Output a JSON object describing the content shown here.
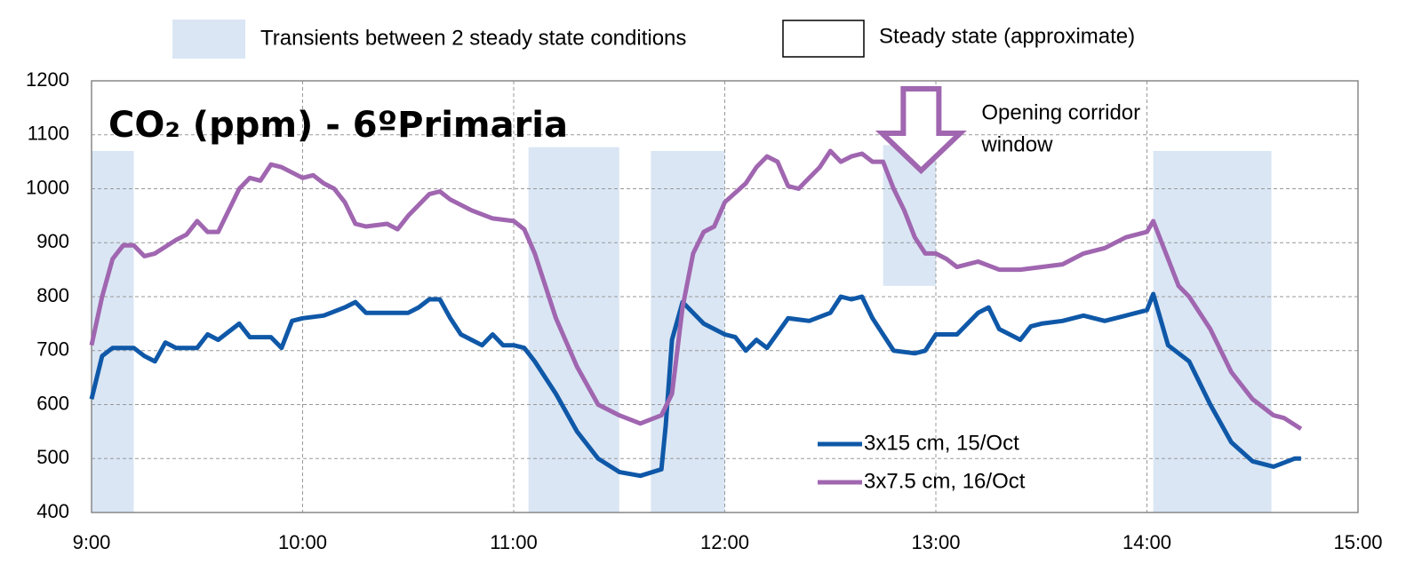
{
  "chart_data": {
    "type": "line",
    "title": "CO₂ (ppm) - 6ºPrimaria",
    "xlim": [
      9,
      15
    ],
    "xticks": [
      {
        "value": 9,
        "label": "9:00"
      },
      {
        "value": 10,
        "label": "10:00"
      },
      {
        "value": 11,
        "label": "11:00"
      },
      {
        "value": 12,
        "label": "12:00"
      },
      {
        "value": 13,
        "label": "13:00"
      },
      {
        "value": 14,
        "label": "14:00"
      },
      {
        "value": 15,
        "label": "15:00"
      }
    ],
    "ylim": [
      400,
      1200
    ],
    "yticks": [
      400,
      500,
      600,
      700,
      800,
      900,
      1000,
      1100,
      1200
    ],
    "grid": true,
    "legend": "lower right",
    "region_legend": [
      {
        "label": "Transients between 2 steady state conditions",
        "color": "#dae6f4"
      },
      {
        "label": "Steady state (approximate)",
        "color": "#ffffff"
      }
    ],
    "shaded_regions": [
      {
        "x": [
          9.0,
          9.2
        ],
        "y": [
          400,
          1070
        ]
      },
      {
        "x": [
          11.07,
          11.5
        ],
        "y": [
          400,
          1077
        ]
      },
      {
        "x": [
          11.65,
          12.0
        ],
        "y": [
          400,
          1070
        ]
      },
      {
        "x": [
          12.75,
          13.0
        ],
        "y": [
          820,
          1081
        ]
      },
      {
        "x": [
          14.03,
          14.59
        ],
        "y": [
          400,
          1070
        ]
      }
    ],
    "annotation": {
      "lines": [
        "Opening corridor",
        "window"
      ],
      "x": 12.93,
      "color": "#a066b0"
    },
    "series": [
      {
        "name": "3x15 cm, 15/Oct",
        "color": "#0f58a8",
        "x": [
          9.0,
          9.05,
          9.1,
          9.2,
          9.25,
          9.3,
          9.35,
          9.4,
          9.5,
          9.55,
          9.6,
          9.7,
          9.75,
          9.85,
          9.9,
          9.95,
          10.0,
          10.1,
          10.2,
          10.25,
          10.3,
          10.4,
          10.5,
          10.55,
          10.6,
          10.65,
          10.7,
          10.75,
          10.8,
          10.85,
          10.9,
          10.95,
          11.0,
          11.05,
          11.1,
          11.2,
          11.3,
          11.4,
          11.5,
          11.6,
          11.7,
          11.72,
          11.75,
          11.8,
          11.85,
          11.9,
          12.0,
          12.05,
          12.1,
          12.15,
          12.2,
          12.3,
          12.4,
          12.5,
          12.55,
          12.6,
          12.65,
          12.7,
          12.8,
          12.9,
          12.95,
          13.0,
          13.1,
          13.2,
          13.25,
          13.3,
          13.4,
          13.45,
          13.5,
          13.6,
          13.7,
          13.8,
          13.9,
          14.0,
          14.03,
          14.1,
          14.2,
          14.3,
          14.4,
          14.5,
          14.6,
          14.7,
          14.73
        ],
        "values": [
          610,
          690,
          705,
          705,
          690,
          680,
          715,
          705,
          705,
          730,
          720,
          750,
          725,
          725,
          705,
          755,
          760,
          765,
          780,
          790,
          770,
          770,
          770,
          780,
          795,
          795,
          760,
          730,
          720,
          710,
          730,
          710,
          710,
          705,
          680,
          620,
          550,
          500,
          475,
          468,
          480,
          560,
          720,
          790,
          770,
          750,
          730,
          725,
          700,
          720,
          705,
          760,
          755,
          770,
          800,
          795,
          800,
          760,
          700,
          695,
          700,
          730,
          730,
          770,
          780,
          740,
          720,
          745,
          750,
          755,
          765,
          755,
          765,
          775,
          805,
          710,
          680,
          600,
          530,
          495,
          485,
          500,
          500
        ]
      },
      {
        "name": "3x7.5 cm, 16/Oct",
        "color": "#a066b0",
        "x": [
          9.0,
          9.05,
          9.1,
          9.15,
          9.2,
          9.25,
          9.3,
          9.4,
          9.45,
          9.5,
          9.55,
          9.6,
          9.7,
          9.75,
          9.8,
          9.85,
          9.9,
          10.0,
          10.05,
          10.1,
          10.15,
          10.2,
          10.25,
          10.3,
          10.4,
          10.45,
          10.5,
          10.6,
          10.65,
          10.7,
          10.8,
          10.9,
          11.0,
          11.05,
          11.1,
          11.2,
          11.3,
          11.4,
          11.5,
          11.6,
          11.7,
          11.75,
          11.8,
          11.85,
          11.9,
          11.95,
          12.0,
          12.1,
          12.15,
          12.2,
          12.25,
          12.3,
          12.35,
          12.4,
          12.45,
          12.5,
          12.55,
          12.6,
          12.65,
          12.7,
          12.75,
          12.8,
          12.85,
          12.9,
          12.95,
          13.0,
          13.05,
          13.1,
          13.2,
          13.3,
          13.4,
          13.5,
          13.6,
          13.7,
          13.8,
          13.9,
          14.0,
          14.03,
          14.1,
          14.15,
          14.2,
          14.3,
          14.4,
          14.5,
          14.6,
          14.65,
          14.73
        ],
        "values": [
          710,
          800,
          870,
          895,
          895,
          875,
          880,
          905,
          915,
          940,
          920,
          920,
          1000,
          1020,
          1015,
          1045,
          1040,
          1020,
          1025,
          1010,
          1000,
          975,
          935,
          930,
          935,
          925,
          950,
          990,
          995,
          980,
          960,
          945,
          940,
          925,
          880,
          760,
          670,
          600,
          580,
          565,
          580,
          620,
          780,
          880,
          920,
          930,
          975,
          1010,
          1040,
          1060,
          1050,
          1005,
          1000,
          1020,
          1040,
          1070,
          1050,
          1060,
          1065,
          1050,
          1050,
          1000,
          960,
          910,
          880,
          880,
          870,
          855,
          865,
          850,
          850,
          855,
          860,
          880,
          890,
          910,
          920,
          940,
          870,
          820,
          800,
          740,
          660,
          610,
          580,
          575,
          555
        ]
      }
    ]
  }
}
